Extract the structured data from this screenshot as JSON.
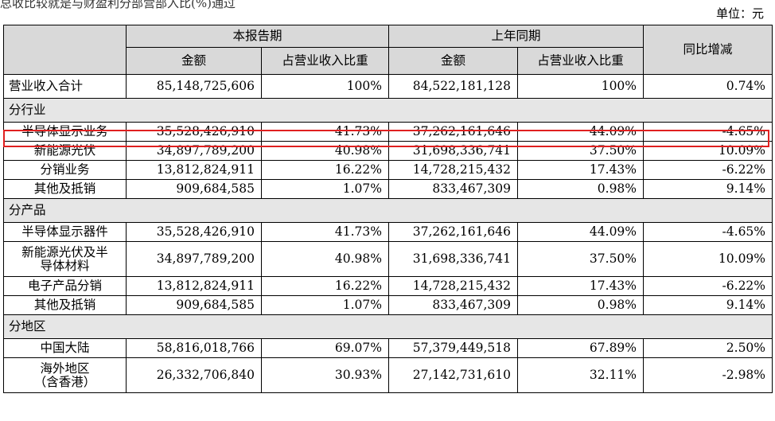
{
  "top_fragment": "总收比较就是与财盈利分部营部入比(%)通过",
  "unit": "单位：元",
  "headers": {
    "current_period": "本报告期",
    "prior_period": "上年同期",
    "yoy": "同比增减",
    "amount": "金额",
    "ratio": "占营业收入比重"
  },
  "total": {
    "label": "营业收入合计",
    "cur_amt": "85,148,725,606",
    "cur_ratio": "100%",
    "pri_amt": "84,522,181,128",
    "pri_ratio": "100%",
    "yoy": "0.74%"
  },
  "sections": {
    "industry": "分行业",
    "product": "分产品",
    "region": "分地区"
  },
  "industry_rows": [
    {
      "label": "半导体显示业务",
      "cur_amt": "35,528,426,910",
      "cur_ratio": "41.73%",
      "pri_amt": "37,262,161,646",
      "pri_ratio": "44.09%",
      "yoy": "-4.65%"
    },
    {
      "label": "新能源光伏",
      "cur_amt": "34,897,789,200",
      "cur_ratio": "40.98%",
      "pri_amt": "31,698,336,741",
      "pri_ratio": "37.50%",
      "yoy": "10.09%"
    },
    {
      "label": "分销业务",
      "cur_amt": "13,812,824,911",
      "cur_ratio": "16.22%",
      "pri_amt": "14,728,215,432",
      "pri_ratio": "17.43%",
      "yoy": "-6.22%"
    },
    {
      "label": "其他及抵销",
      "cur_amt": "909,684,585",
      "cur_ratio": "1.07%",
      "pri_amt": "833,467,309",
      "pri_ratio": "0.98%",
      "yoy": "9.14%"
    }
  ],
  "product_rows": [
    {
      "label": "半导体显示器件",
      "cur_amt": "35,528,426,910",
      "cur_ratio": "41.73%",
      "pri_amt": "37,262,161,646",
      "pri_ratio": "44.09%",
      "yoy": "-4.65%"
    },
    {
      "label_line1": "新能源光伏及半",
      "label_line2": "导体材料",
      "cur_amt": "34,897,789,200",
      "cur_ratio": "40.98%",
      "pri_amt": "31,698,336,741",
      "pri_ratio": "37.50%",
      "yoy": "10.09%"
    },
    {
      "label": "电子产品分销",
      "cur_amt": "13,812,824,911",
      "cur_ratio": "16.22%",
      "pri_amt": "14,728,215,432",
      "pri_ratio": "17.43%",
      "yoy": "-6.22%"
    },
    {
      "label": "其他及抵销",
      "cur_amt": "909,684,585",
      "cur_ratio": "1.07%",
      "pri_amt": "833,467,309",
      "pri_ratio": "0.98%",
      "yoy": "9.14%"
    }
  ],
  "region_rows": [
    {
      "label": "中国大陆",
      "cur_amt": "58,816,018,766",
      "cur_ratio": "69.07%",
      "pri_amt": "57,379,449,518",
      "pri_ratio": "67.89%",
      "yoy": "2.50%"
    },
    {
      "label_line1": "海外地区",
      "label_line2": "（含香港）",
      "cur_amt": "26,332,706,840",
      "cur_ratio": "30.93%",
      "pri_amt": "27,142,731,610",
      "pri_ratio": "32.11%",
      "yoy": "-2.98%"
    }
  ],
  "highlight_color": "#e02020"
}
